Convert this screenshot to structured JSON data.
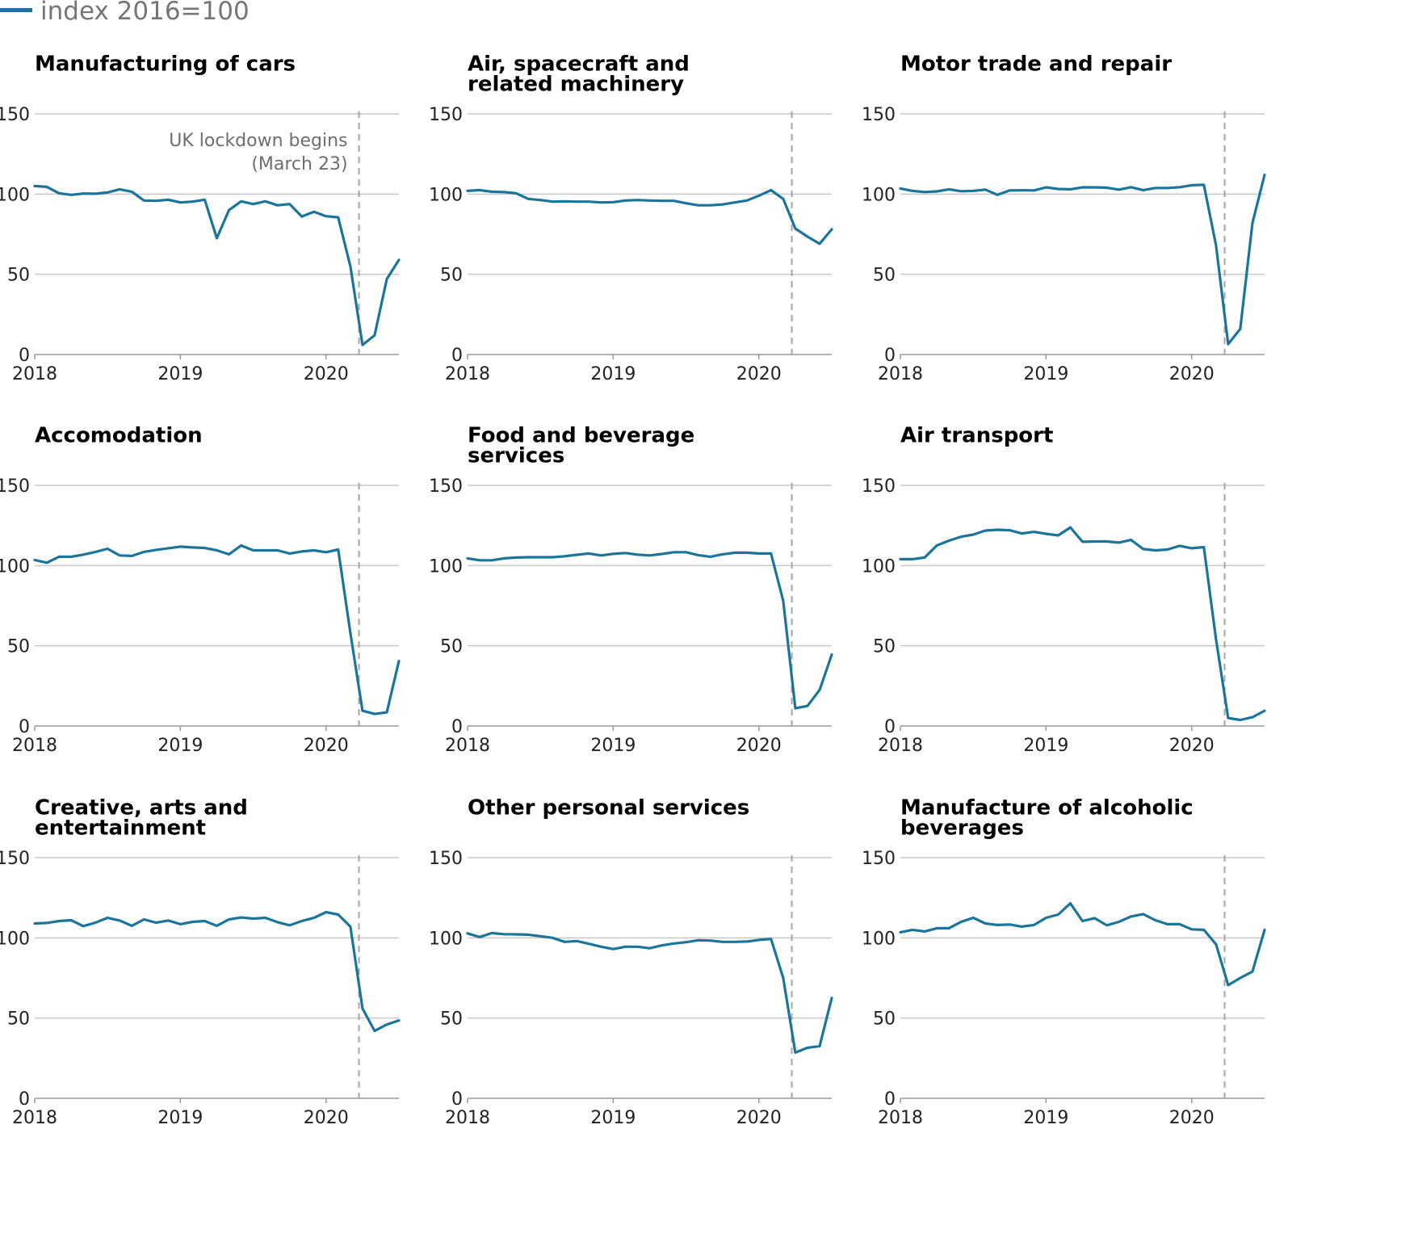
{
  "legend": {
    "label": "index 2016=100"
  },
  "colors": {
    "series": "#1b7499"
  },
  "chart_data": {
    "type": "line",
    "ylim": [
      0,
      150
    ],
    "yticks": [
      0,
      50,
      100,
      150
    ],
    "x_start": "2018-01",
    "x_end": "2020-06",
    "xticks": [
      "2018",
      "2019",
      "2020"
    ],
    "annotation": {
      "label_lines": [
        "UK lockdown begins",
        "(March 23)"
      ],
      "date": "2020-03-23"
    },
    "panels": [
      {
        "title_lines": [
          "Manufacturing of cars"
        ],
        "values": [
          105,
          104.5,
          100.5,
          99.5,
          100.3,
          100.2,
          101,
          103,
          101.5,
          96,
          95.8,
          96.5,
          94.8,
          95.3,
          96.5,
          72.5,
          90,
          95.5,
          93.8,
          95.5,
          93,
          93.8,
          86,
          89,
          86.2,
          85.5,
          55,
          6,
          12,
          47,
          59
        ]
      },
      {
        "title_lines": [
          "Air, spacecraft and",
          "related machinery"
        ],
        "values": [
          102,
          102.5,
          101.5,
          101.3,
          100.5,
          97,
          96.3,
          95.3,
          95.5,
          95.3,
          95.3,
          94.8,
          95,
          96,
          96.3,
          96,
          95.8,
          95.8,
          94.3,
          93,
          93,
          93.5,
          94.8,
          96,
          99,
          102.5,
          97,
          78.5,
          73.5,
          69,
          78
        ]
      },
      {
        "title_lines": [
          "Motor trade and repair"
        ],
        "values": [
          103.5,
          102,
          101.3,
          101.7,
          103,
          101.8,
          102,
          102.8,
          99.5,
          102.3,
          102.4,
          102.3,
          104.2,
          103.2,
          103,
          104.2,
          104.2,
          104,
          102.8,
          104.3,
          102.5,
          103.8,
          103.8,
          104.3,
          105.5,
          105.8,
          68,
          6.5,
          16,
          82,
          112
        ]
      },
      {
        "title_lines": [
          "Accomodation"
        ],
        "values": [
          103.5,
          101.8,
          105.5,
          105.5,
          106.8,
          108.5,
          110.5,
          106.3,
          106,
          108.5,
          109.8,
          110.8,
          111.8,
          111.3,
          111,
          109.5,
          107,
          112.5,
          109.5,
          109.5,
          109.5,
          107.5,
          108.8,
          109.5,
          108.3,
          110,
          58,
          9.5,
          7.5,
          8.5,
          40.5
        ]
      },
      {
        "title_lines": [
          "Food and beverage",
          "services"
        ],
        "values": [
          104.5,
          103.3,
          103.3,
          104.5,
          105,
          105.2,
          105.2,
          105.2,
          105.8,
          106.7,
          107.5,
          106.3,
          107.3,
          107.8,
          106.8,
          106.3,
          107.2,
          108.3,
          108.3,
          106.5,
          105.5,
          107,
          108,
          108,
          107.5,
          107.5,
          78,
          11,
          12.5,
          22.5,
          44.5
        ]
      },
      {
        "title_lines": [
          "Air transport"
        ],
        "values": [
          104,
          104,
          105,
          112.5,
          115.5,
          118,
          119.3,
          121.8,
          122.3,
          122,
          120,
          121,
          119.8,
          118.8,
          123.8,
          114.8,
          115,
          115,
          114.3,
          116,
          110.3,
          109.5,
          110,
          112.3,
          110.8,
          111.5,
          54,
          5,
          3.8,
          5.5,
          9.5
        ]
      },
      {
        "title_lines": [
          "Creative, arts and",
          "entertainment"
        ],
        "values": [
          109,
          109.3,
          110.5,
          111,
          107.3,
          109.5,
          112.5,
          110.8,
          107.5,
          111.5,
          109.5,
          110.8,
          108.5,
          110,
          110.5,
          107.5,
          111.5,
          112.7,
          112,
          112.5,
          109.8,
          107.8,
          110.5,
          112.5,
          116,
          114.5,
          107,
          56,
          42,
          46,
          48.5
        ]
      },
      {
        "title_lines": [
          "Other personal services"
        ],
        "values": [
          102.8,
          100.5,
          103,
          102.3,
          102.2,
          102,
          101,
          100,
          97.5,
          98,
          96.3,
          94.5,
          93,
          94.5,
          94.5,
          93.5,
          95.3,
          96.5,
          97.3,
          98.5,
          98.3,
          97.5,
          97.5,
          97.7,
          98.7,
          99.3,
          75,
          28.5,
          31.5,
          32.5,
          62.5
        ]
      },
      {
        "title_lines": [
          "Manufacture of alcoholic",
          "beverages"
        ],
        "values": [
          103.5,
          105,
          104,
          106,
          106,
          110,
          112.5,
          109,
          108,
          108.3,
          107,
          108,
          112.5,
          114.5,
          121.5,
          110.5,
          112.3,
          107.8,
          110,
          113.3,
          114.8,
          111,
          108.5,
          108.5,
          105.3,
          105,
          96,
          70.5,
          75,
          79,
          105
        ]
      }
    ]
  }
}
